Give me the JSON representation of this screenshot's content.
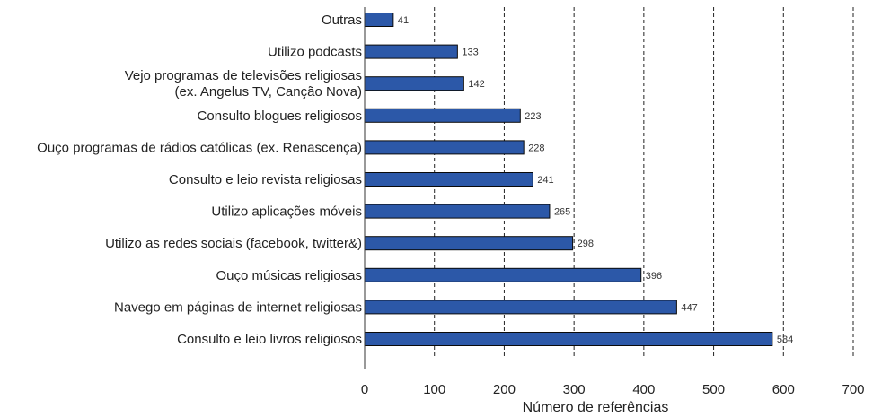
{
  "chart_data": {
    "type": "bar",
    "orientation": "horizontal",
    "categories": [
      "Outras",
      "Utilizo podcasts",
      [
        "Vejo programas de televisões religiosas",
        "(ex. Angelus TV, Canção Nova)"
      ],
      "Consulto blogues religiosos",
      "Ouço programas de rádios católicas (ex. Renascença)",
      "Consulto e leio revista religiosas",
      "Utilizo aplicações móveis",
      "Utilizo as redes sociais (facebook, twitter&)",
      "Ouço músicas religiosas",
      "Navego em páginas de internet religiosas",
      "Consulto e leio livros religiosos"
    ],
    "values": [
      41,
      133,
      142,
      223,
      228,
      241,
      265,
      298,
      396,
      447,
      584
    ],
    "data_labels": [
      "41",
      "133",
      "142",
      "223",
      "228",
      "241",
      "265",
      "298",
      "396",
      "447",
      "584"
    ],
    "xlabel": "Número de referências",
    "ylabel": "",
    "xlim": [
      0,
      700
    ],
    "xticks": [
      0,
      100,
      200,
      300,
      400,
      500,
      600,
      700
    ],
    "grid": "vertical dashed",
    "legend": "none",
    "bar_color": "#2c58a8",
    "bar_edge_color": "#0a0a0a"
  }
}
